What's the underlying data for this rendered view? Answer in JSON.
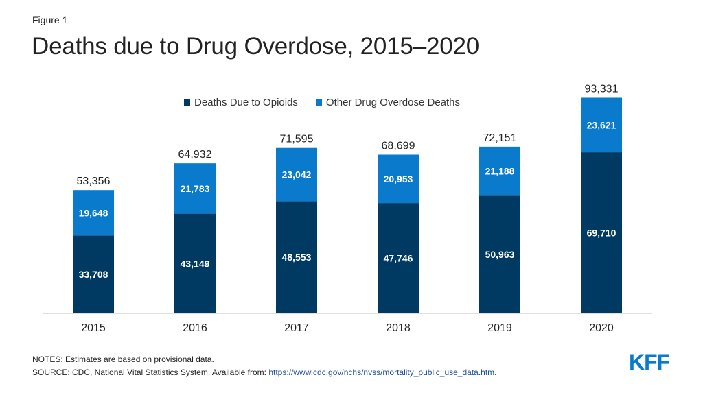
{
  "figure_label": "Figure 1",
  "title": "Deaths due to Drug Overdose, 2015–2020",
  "colors": {
    "opioids": "#003a63",
    "other": "#0a7acc",
    "axis": "#bfbfbf",
    "logo": "#0a7acc"
  },
  "chart_data": {
    "type": "bar",
    "stacked": true,
    "categories": [
      "2015",
      "2016",
      "2017",
      "2018",
      "2019",
      "2020"
    ],
    "series": [
      {
        "name": "Deaths Due to Opioids",
        "values": [
          33708,
          43149,
          48553,
          47746,
          50963,
          69710
        ],
        "labels": [
          "33,708",
          "43,149",
          "48,553",
          "47,746",
          "50,963",
          "69,710"
        ]
      },
      {
        "name": "Other Drug Overdose Deaths",
        "values": [
          19648,
          21783,
          23042,
          20953,
          21188,
          23621
        ],
        "labels": [
          "19,648",
          "21,783",
          "23,042",
          "20,953",
          "21,188",
          "23,621"
        ]
      }
    ],
    "totals": [
      53356,
      64932,
      71595,
      68699,
      72151,
      93331
    ],
    "total_labels": [
      "53,356",
      "64,932",
      "71,595",
      "68,699",
      "72,151",
      "93,331"
    ],
    "ylim": [
      0,
      100000
    ],
    "grid": false,
    "legend_position": "top"
  },
  "notes": "NOTES: Estimates are based on provisional data.",
  "source_prefix": "SOURCE: CDC, National Vital Statistics System. Available from: ",
  "source_link": "https://www.cdc.gov/nchs/nvss/mortality_public_use_data.htm",
  "source_suffix": ".",
  "logo_text": "KFF"
}
